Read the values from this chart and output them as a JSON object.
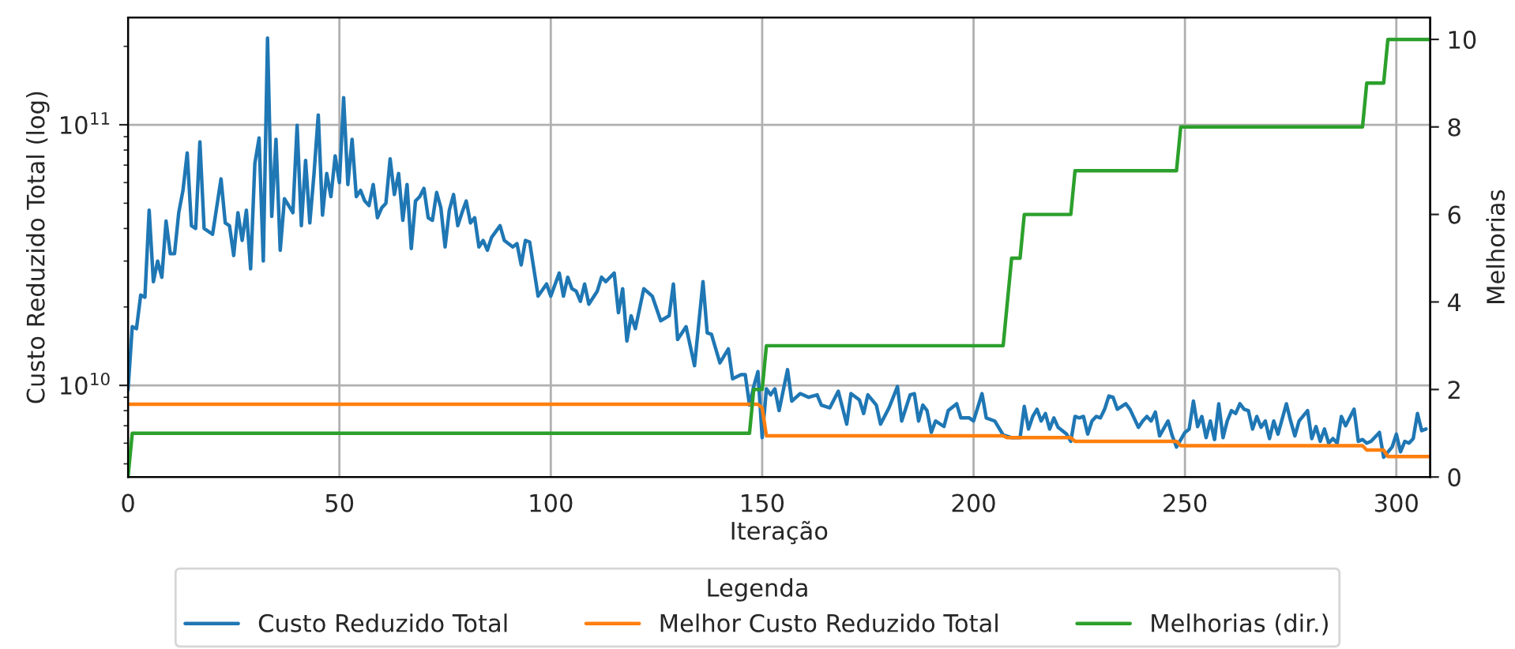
{
  "chart_data": {
    "type": "line",
    "xlabel": "Iteração",
    "ylabel": "Custo Reduzido Total (log)",
    "y2label": "Melhorias",
    "legend_title": "Legenda",
    "legend": "bottom",
    "grid": true,
    "log": "y",
    "line_style": "solid",
    "marker": "none",
    "xlim": [
      0,
      308
    ],
    "xticks": [
      0,
      50,
      100,
      150,
      200,
      250,
      300
    ],
    "ylim": [
      4450000000.0,
      258000000000.0
    ],
    "yticks": [
      {
        "value": 10000000000.0,
        "label": "10$^{10}$"
      },
      {
        "value": 100000000000.0,
        "label": "10$^{11}$"
      }
    ],
    "y2lim": [
      0,
      10.5
    ],
    "y2ticks": [
      0,
      2,
      4,
      6,
      8,
      10
    ],
    "series": [
      {
        "name": "Custo Reduzido Total",
        "color": "#1f77b4",
        "axis": "y",
        "x": [
          0,
          1,
          2,
          3,
          4,
          5,
          6,
          7,
          8,
          9,
          10,
          11,
          12,
          13,
          14,
          15,
          16,
          17,
          18,
          20,
          22,
          23,
          24,
          25,
          26,
          27,
          28,
          29,
          30,
          31,
          32,
          33,
          34,
          35,
          36,
          37,
          38,
          39,
          40,
          41,
          42,
          43,
          44,
          45,
          46,
          47,
          48,
          49,
          50,
          51,
          52,
          53,
          54,
          55,
          56,
          57,
          58,
          59,
          60,
          61,
          62,
          63,
          64,
          65,
          66,
          67,
          68,
          69,
          70,
          71,
          72,
          73,
          74,
          75,
          76,
          77,
          78,
          79,
          80,
          81,
          82,
          83,
          84,
          85,
          86,
          88,
          89,
          91,
          92,
          93,
          94,
          95,
          97,
          99,
          100,
          102,
          103,
          104,
          105,
          106,
          107,
          108,
          109,
          111,
          112,
          113,
          115,
          116,
          117,
          118,
          119,
          120,
          122,
          124,
          126,
          128,
          129,
          130,
          132,
          134,
          136,
          137,
          138,
          140,
          142,
          143,
          145,
          146,
          147,
          148,
          149,
          150,
          151,
          152,
          153,
          154,
          156,
          157,
          159,
          161,
          163,
          164,
          166,
          168,
          170,
          171,
          173,
          174,
          175,
          177,
          178,
          180,
          182,
          183,
          185,
          186,
          187,
          188,
          189,
          190,
          191,
          193,
          194,
          196,
          197,
          199,
          200,
          202,
          203,
          205,
          207,
          209,
          211,
          212,
          213,
          214,
          215,
          216,
          217,
          218,
          219,
          220,
          222,
          223,
          224,
          225,
          226,
          227,
          228,
          229,
          230,
          231,
          232,
          233,
          234,
          236,
          237,
          239,
          240,
          241,
          242,
          243,
          244,
          246,
          247,
          248,
          250,
          251,
          252,
          253,
          254,
          255,
          256,
          257,
          258,
          259,
          260,
          261,
          262,
          263,
          264,
          265,
          266,
          267,
          268,
          269,
          270,
          271,
          272,
          274,
          275,
          276,
          277,
          279,
          280,
          281,
          282,
          283,
          284,
          285,
          286,
          287,
          288,
          290,
          291,
          292,
          293,
          294,
          296,
          297,
          299,
          300,
          301,
          302,
          303,
          304,
          305,
          306,
          307
        ],
        "values": [
          9600000000.0,
          16800000000.0,
          16500000000.0,
          22200000000.0,
          21800000000.0,
          47000000000.0,
          25000000000.0,
          30000000000.0,
          26000000000.0,
          42700000000.0,
          32000000000.0,
          32000000000.0,
          46000000000.0,
          56000000000.0,
          78000000000.0,
          41000000000.0,
          40000000000.0,
          86000000000.0,
          40000000000.0,
          38000000000.0,
          62000000000.0,
          42000000000.0,
          41000000000.0,
          31500000000.0,
          46000000000.0,
          36000000000.0,
          47000000000.0,
          28000000000.0,
          71000000000.0,
          89000000000.0,
          30000000000.0,
          215000000000.0,
          44500000000.0,
          88000000000.0,
          33000000000.0,
          52000000000.0,
          49000000000.0,
          46000000000.0,
          99500000000.0,
          41000000000.0,
          73000000000.0,
          42000000000.0,
          65000000000.0,
          109000000000.0,
          45000000000.0,
          65000000000.0,
          53000000000.0,
          76000000000.0,
          60000000000.0,
          127000000000.0,
          59000000000.0,
          88000000000.0,
          53000000000.0,
          56000000000.0,
          51000000000.0,
          49000000000.0,
          59000000000.0,
          44000000000.0,
          48000000000.0,
          50000000000.0,
          74000000000.0,
          54000000000.0,
          65000000000.0,
          43000000000.0,
          59000000000.0,
          33500000000.0,
          51000000000.0,
          53000000000.0,
          57000000000.0,
          44000000000.0,
          43000000000.0,
          55000000000.0,
          48000000000.0,
          34000000000.0,
          47000000000.0,
          54000000000.0,
          41000000000.0,
          46000000000.0,
          51000000000.0,
          42000000000.0,
          44000000000.0,
          34000000000.0,
          36000000000.0,
          33000000000.0,
          37000000000.0,
          41000000000.0,
          36000000000.0,
          34000000000.0,
          35000000000.0,
          29000000000.0,
          36000000000.0,
          35500000000.0,
          22000000000.0,
          24500000000.0,
          22000000000.0,
          27000000000.0,
          22000000000.0,
          26000000000.0,
          23500000000.0,
          23000000000.0,
          21000000000.0,
          24500000000.0,
          20500000000.0,
          23000000000.0,
          26000000000.0,
          25000000000.0,
          27000000000.0,
          19000000000.0,
          23500000000.0,
          14800000000.0,
          18500000000.0,
          16500000000.0,
          23500000000.0,
          22000000000.0,
          17700000000.0,
          18500000000.0,
          24500000000.0,
          15000000000.0,
          16800000000.0,
          11900000000.0,
          25000000000.0,
          15900000000.0,
          15700000000.0,
          12200000000.0,
          13800000000.0,
          10600000000.0,
          11000000000.0,
          11000000000.0,
          8400000000.0,
          9900000000.0,
          11300000000.0,
          6300000000.0,
          9700000000.0,
          9200000000.0,
          9700000000.0,
          8000000000.0,
          11500000000.0,
          8700000000.0,
          9300000000.0,
          9000000000.0,
          9200000000.0,
          8400000000.0,
          8200000000.0,
          9500000000.0,
          7100000000.0,
          9300000000.0,
          8800000000.0,
          7800000000.0,
          9200000000.0,
          8400000000.0,
          7100000000.0,
          8200000000.0,
          9900000000.0,
          7300000000.0,
          9200000000.0,
          9300000000.0,
          7300000000.0,
          8400000000.0,
          8000000000.0,
          6600000000.0,
          7300000000.0,
          6950000000.0,
          8000000000.0,
          8500000000.0,
          7500000000.0,
          7500000000.0,
          7300000000.0,
          9300000000.0,
          7500000000.0,
          7300000000.0,
          6450000000.0,
          6300000000.0,
          6300000000.0,
          8300000000.0,
          6800000000.0,
          7600000000.0,
          8100000000.0,
          7300000000.0,
          7800000000.0,
          6800000000.0,
          7500000000.0,
          6900000000.0,
          6500000000.0,
          6100000000.0,
          7600000000.0,
          7500000000.0,
          7600000000.0,
          6500000000.0,
          7300000000.0,
          7600000000.0,
          7500000000.0,
          8100000000.0,
          9100000000.0,
          9000000000.0,
          8100000000.0,
          8500000000.0,
          8100000000.0,
          6900000000.0,
          7300000000.0,
          7600000000.0,
          7300000000.0,
          7900000000.0,
          6400000000.0,
          7300000000.0,
          6400000000.0,
          5800000000.0,
          6600000000.0,
          6800000000.0,
          8700000000.0,
          6950000000.0,
          7600000000.0,
          6300000000.0,
          7300000000.0,
          6200000000.0,
          8500000000.0,
          6300000000.0,
          7300000000.0,
          8000000000.0,
          7800000000.0,
          8500000000.0,
          8100000000.0,
          8000000000.0,
          6800000000.0,
          7600000000.0,
          6900000000.0,
          7300000000.0,
          6250000000.0,
          7300000000.0,
          6500000000.0,
          8500000000.0,
          7300000000.0,
          6400000000.0,
          7300000000.0,
          8000000000.0,
          6250000000.0,
          6950000000.0,
          6100000000.0,
          6800000000.0,
          6000000000.0,
          6250000000.0,
          6000000000.0,
          7600000000.0,
          7000000000.0,
          8100000000.0,
          6100000000.0,
          6200000000.0,
          6000000000.0,
          6100000000.0,
          6600000000.0,
          5300000000.0,
          5800000000.0,
          6500000000.0,
          5560000000.0,
          6100000000.0,
          6000000000.0,
          6250000000.0,
          7800000000.0,
          6700000000.0,
          6800000000.0
        ]
      },
      {
        "name": "Melhor Custo Reduzido Total",
        "color": "#ff7f0e",
        "axis": "y",
        "x": [
          0,
          149,
          150,
          151,
          207,
          208,
          223,
          224,
          248,
          249,
          292,
          293,
          297,
          298,
          308
        ],
        "values": [
          8460000000.0,
          8460000000.0,
          8200000000.0,
          6400000000.0,
          6400000000.0,
          6300000000.0,
          6300000000.0,
          6100000000.0,
          6100000000.0,
          5870000000.0,
          5870000000.0,
          5650000000.0,
          5650000000.0,
          5330000000.0,
          5330000000.0
        ]
      },
      {
        "name": "Melhorias (dir.)",
        "color": "#2ca02c",
        "axis": "y2",
        "x": [
          0,
          1,
          147,
          148,
          150,
          151,
          207,
          208,
          209,
          211,
          212,
          223,
          224,
          248,
          249,
          292,
          293,
          297,
          298,
          308
        ],
        "values": [
          0,
          1,
          1,
          2,
          2,
          3,
          3,
          4,
          5,
          5,
          6,
          6,
          7,
          7,
          8,
          8,
          9,
          9,
          10,
          10
        ]
      }
    ]
  }
}
